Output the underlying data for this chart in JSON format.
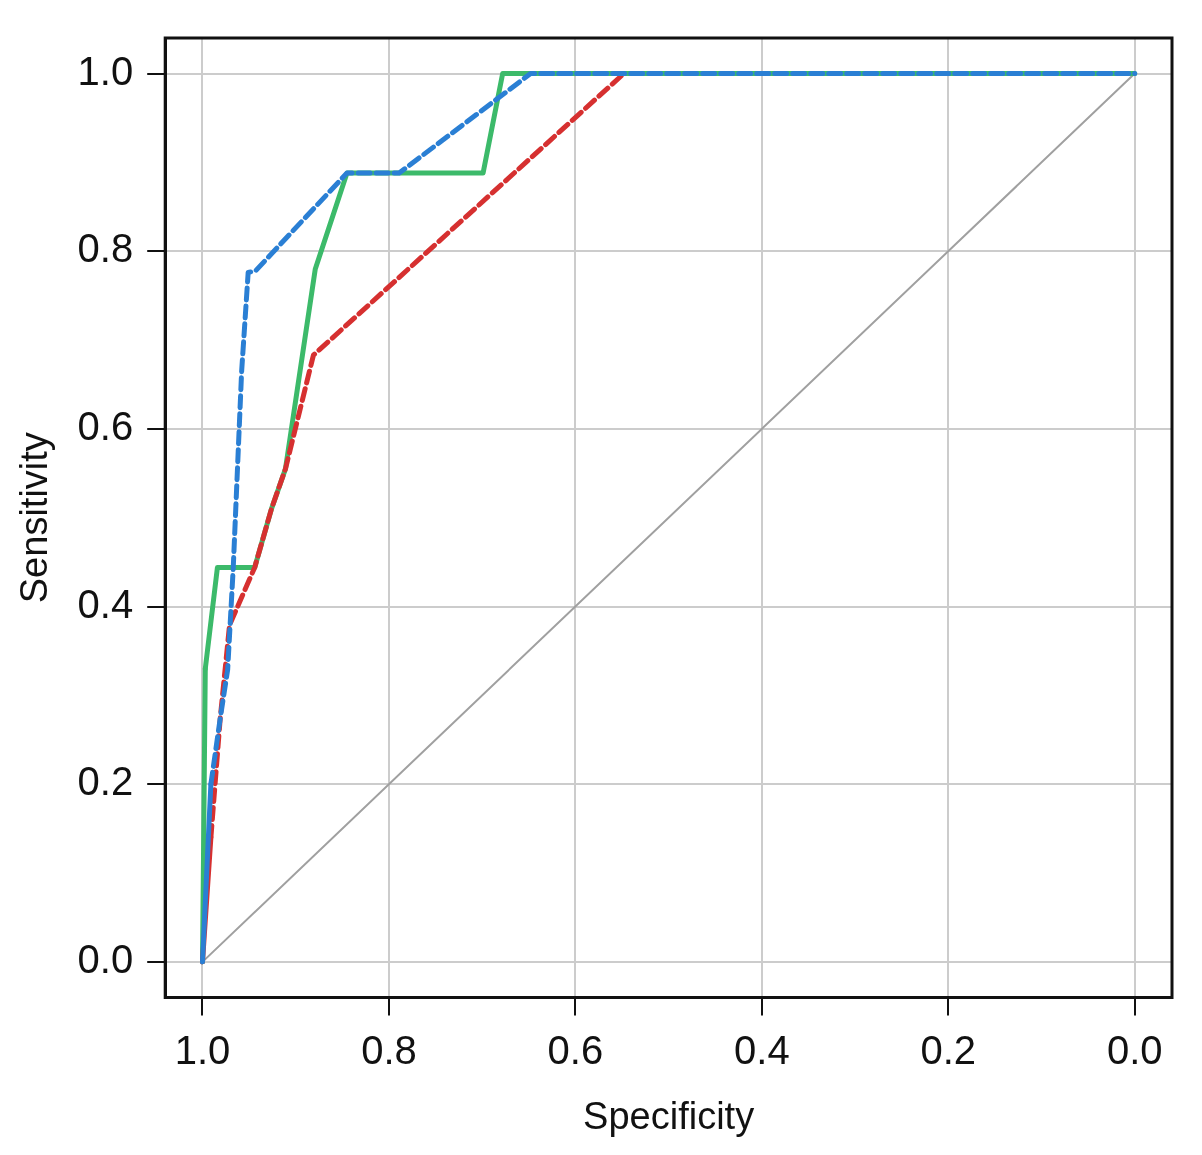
{
  "chart_data": {
    "type": "line",
    "xlabel": "Specificity",
    "ylabel": "Sensitivity",
    "xlim": [
      1.04,
      -0.04
    ],
    "ylim": [
      -0.04,
      1.04
    ],
    "xticks": [
      {
        "value": 1,
        "label": "1.0"
      },
      0.8,
      0.6,
      0.4,
      0.2,
      {
        "value": 0,
        "label": "0.0"
      }
    ],
    "yticks": [
      {
        "value": 0,
        "label": "0.0"
      },
      0.2,
      0.4,
      0.6,
      0.8,
      {
        "value": 1,
        "label": "1.0"
      }
    ],
    "grid": true,
    "legend": false,
    "marker": "none",
    "series": [
      {
        "color": "#a0a0a0",
        "line_style": "solid",
        "x": [
          1,
          0
        ],
        "values": [
          0,
          1
        ]
      },
      {
        "color": "#3cba6a",
        "line_style": "solid",
        "x": [
          1,
          0.997,
          0.984,
          0.944,
          0.926,
          0.911,
          0.879,
          0.845,
          0.699,
          0.678,
          0
        ],
        "values": [
          0,
          0.33,
          0.444,
          0.444,
          0.51,
          0.555,
          0.78,
          0.888,
          0.888,
          1,
          1
        ]
      },
      {
        "color": "#d63030",
        "line_style": "dashed",
        "x": [
          1,
          0.991,
          0.981,
          0.971,
          0.944,
          0.926,
          0.911,
          0.881,
          0.548
        ],
        "values": [
          0,
          0.14,
          0.274,
          0.379,
          0.444,
          0.51,
          0.555,
          0.683,
          1
        ]
      },
      {
        "color": "#2a7fd4",
        "line_style": "dashed",
        "x": [
          1,
          0.991,
          0.981,
          0.973,
          0.967,
          0.958,
          0.951,
          0.943,
          0.845,
          0.789,
          0.648,
          0
        ],
        "values": [
          0,
          0.2,
          0.274,
          0.329,
          0.444,
          0.665,
          0.776,
          0.778,
          0.888,
          0.888,
          1,
          1
        ]
      }
    ]
  }
}
